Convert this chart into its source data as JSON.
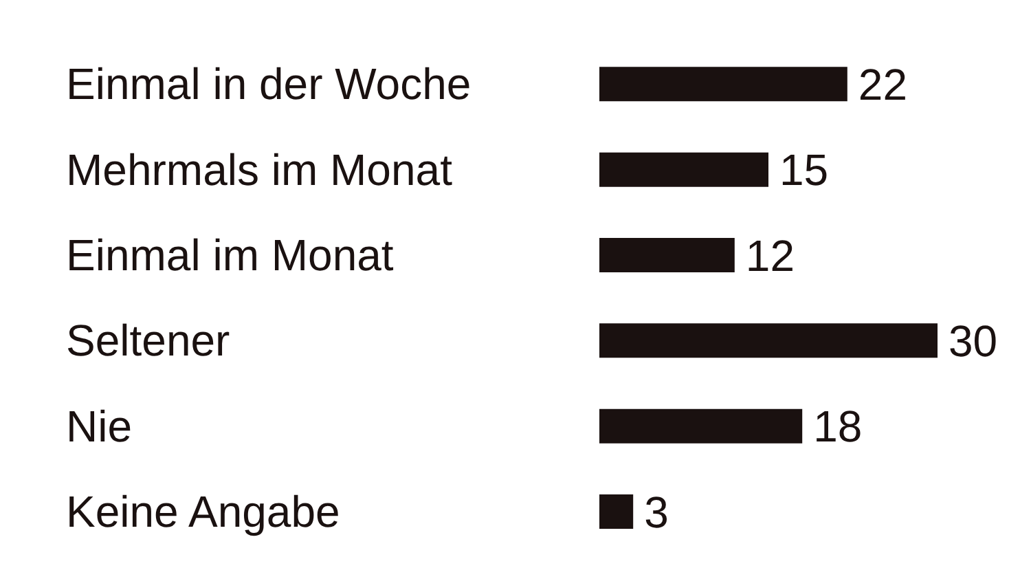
{
  "chart_data": {
    "type": "bar",
    "orientation": "horizontal",
    "categories": [
      "Einmal in der Woche",
      "Mehrmals im Monat",
      "Einmal im Monat",
      "Seltener",
      "Nie",
      "Keine Angabe"
    ],
    "values": [
      22,
      15,
      12,
      30,
      18,
      3
    ],
    "color": "#1a1110",
    "data_labels": true
  }
}
